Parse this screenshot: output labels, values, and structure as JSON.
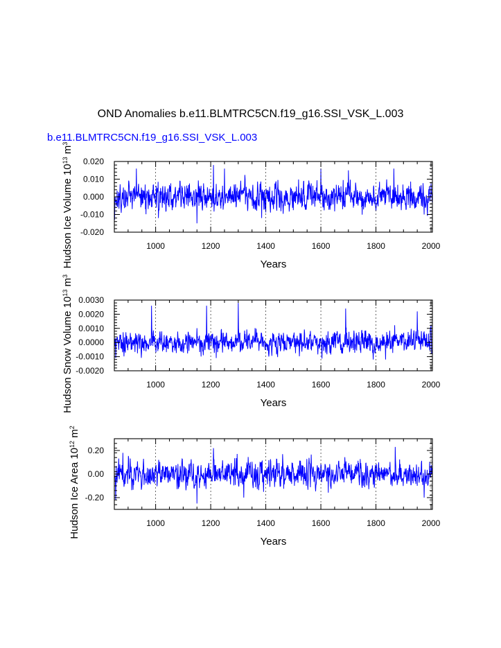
{
  "title": "OND Anomalies b.e11.BLMTRC5CN.f19_g16.SSI_VSK_L.003",
  "subtitle": "b.e11.BLMTRC5CN.f19_g16.SSI_VSK_L.003",
  "colors": {
    "series": "#0000ff",
    "axis": "#000000",
    "grid": "#000000"
  },
  "chart_data": [
    {
      "type": "line",
      "title": "",
      "series_name": "b.e11.BLMTRC5CN.f19_g16.SSI_VSK_L.003",
      "xlabel": "Years",
      "ylabel": "Hudson Ice Volume 10",
      "ylabel_units": "13",
      "ylabel_sup2": "m",
      "ylabel_sup3": "3",
      "xlim": [
        850,
        2005
      ],
      "ylim": [
        -0.02,
        0.02
      ],
      "xticks": [
        1000,
        1200,
        1400,
        1600,
        1800,
        2000
      ],
      "xtick_labels": [
        "1000",
        "1200",
        "1400",
        "1600",
        "1800",
        "2000"
      ],
      "yticks": [
        -0.02,
        -0.01,
        0.0,
        0.01,
        0.02
      ],
      "ytick_labels": [
        "-0.020",
        "-0.010",
        "0.000",
        "0.010",
        "0.020"
      ],
      "grid": "vertical dashed at major x ticks",
      "noise_amplitude": 0.0045,
      "peaks": [
        [
          851,
          -0.013
        ],
        [
          930,
          0.016
        ],
        [
          1010,
          -0.012
        ],
        [
          1150,
          -0.015
        ],
        [
          1210,
          0.018
        ],
        [
          1250,
          0.016
        ],
        [
          1385,
          -0.012
        ],
        [
          1600,
          0.016
        ],
        [
          1700,
          0.015
        ],
        [
          1865,
          0.016
        ],
        [
          1975,
          -0.01
        ]
      ]
    },
    {
      "type": "line",
      "title": "",
      "series_name": "b.e11.BLMTRC5CN.f19_g16.SSI_VSK_L.003",
      "xlabel": "Years",
      "ylabel": "Hudson Snow Volume 10",
      "ylabel_units": "13",
      "ylabel_sup2": "m",
      "ylabel_sup3": "3",
      "xlim": [
        850,
        2005
      ],
      "ylim": [
        -0.002,
        0.003
      ],
      "xticks": [
        1000,
        1200,
        1400,
        1600,
        1800,
        2000
      ],
      "xtick_labels": [
        "1000",
        "1200",
        "1400",
        "1600",
        "1800",
        "2000"
      ],
      "yticks": [
        -0.002,
        -0.001,
        0.0,
        0.001,
        0.002,
        0.003
      ],
      "ytick_labels": [
        "-0.0020",
        "-0.0010",
        "0.0000",
        "0.0010",
        "0.0020",
        "0.0030"
      ],
      "grid": "vertical dashed at major x ticks",
      "noise_amplitude": 0.00045,
      "peaks": [
        [
          855,
          -0.0011
        ],
        [
          985,
          0.0026
        ],
        [
          1185,
          0.0026
        ],
        [
          1300,
          0.0028
        ],
        [
          1220,
          -0.0011
        ],
        [
          1790,
          -0.0012
        ],
        [
          1835,
          -0.0012
        ],
        [
          1950,
          0.0022
        ],
        [
          1690,
          0.0024
        ]
      ]
    },
    {
      "type": "line",
      "title": "",
      "series_name": "b.e11.BLMTRC5CN.f19_g16.SSI_VSK_L.003",
      "xlabel": "Years",
      "ylabel": "Hudson Ice Area 10",
      "ylabel_units": "12",
      "ylabel_sup2": "m",
      "ylabel_sup3": "2",
      "xlim": [
        850,
        2005
      ],
      "ylim": [
        -0.3,
        0.3
      ],
      "xticks": [
        1000,
        1200,
        1400,
        1600,
        1800,
        2000
      ],
      "xtick_labels": [
        "1000",
        "1200",
        "1400",
        "1600",
        "1800",
        "2000"
      ],
      "yticks": [
        -0.2,
        0.0,
        0.2
      ],
      "ytick_labels": [
        "-0.20",
        "0.00",
        "0.20"
      ],
      "grid": "vertical dashed at major x ticks",
      "noise_amplitude": 0.065,
      "peaks": [
        [
          855,
          -0.22
        ],
        [
          1150,
          -0.25
        ],
        [
          1210,
          0.22
        ],
        [
          1320,
          -0.2
        ],
        [
          1870,
          0.23
        ],
        [
          1975,
          -0.2
        ]
      ]
    }
  ]
}
